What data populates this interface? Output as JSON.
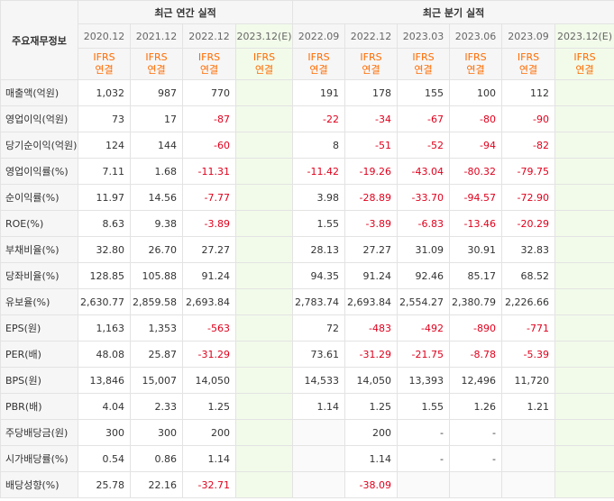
{
  "header": {
    "corner_label": "주요재무정보",
    "annual_title": "최근 연간 실적",
    "quarterly_title": "최근 분기 실적",
    "annual_periods": [
      "2020.12",
      "2021.12",
      "2022.12",
      "2023.12(E)"
    ],
    "quarterly_periods": [
      "2022.09",
      "2022.12",
      "2023.03",
      "2023.06",
      "2023.09",
      "2023.12(E)"
    ],
    "ifrs_line1": "IFRS",
    "ifrs_line2": "연결"
  },
  "rows": [
    {
      "label": "매출액(억원)",
      "annual": [
        "1,032",
        "987",
        "770",
        ""
      ],
      "quarterly": [
        "191",
        "178",
        "155",
        "100",
        "112",
        ""
      ]
    },
    {
      "label": "영업이익(억원)",
      "annual": [
        "73",
        "17",
        "-87",
        ""
      ],
      "quarterly": [
        "-22",
        "-34",
        "-67",
        "-80",
        "-90",
        ""
      ]
    },
    {
      "label": "당기순이익(억원)",
      "annual": [
        "124",
        "144",
        "-60",
        ""
      ],
      "quarterly": [
        "8",
        "-51",
        "-52",
        "-94",
        "-82",
        ""
      ]
    },
    {
      "label": "영업이익률(%)",
      "annual": [
        "7.11",
        "1.68",
        "-11.31",
        ""
      ],
      "quarterly": [
        "-11.42",
        "-19.26",
        "-43.04",
        "-80.32",
        "-79.75",
        ""
      ]
    },
    {
      "label": "순이익률(%)",
      "annual": [
        "11.97",
        "14.56",
        "-7.77",
        ""
      ],
      "quarterly": [
        "3.98",
        "-28.89",
        "-33.70",
        "-94.57",
        "-72.90",
        ""
      ]
    },
    {
      "label": "ROE(%)",
      "annual": [
        "8.63",
        "9.38",
        "-3.89",
        ""
      ],
      "quarterly": [
        "1.55",
        "-3.89",
        "-6.83",
        "-13.46",
        "-20.29",
        ""
      ]
    },
    {
      "label": "부채비율(%)",
      "annual": [
        "32.80",
        "26.70",
        "27.27",
        ""
      ],
      "quarterly": [
        "28.13",
        "27.27",
        "31.09",
        "30.91",
        "32.83",
        ""
      ]
    },
    {
      "label": "당좌비율(%)",
      "annual": [
        "128.85",
        "105.88",
        "91.24",
        ""
      ],
      "quarterly": [
        "94.35",
        "91.24",
        "92.46",
        "85.17",
        "68.52",
        ""
      ]
    },
    {
      "label": "유보율(%)",
      "annual": [
        "2,630.77",
        "2,859.58",
        "2,693.84",
        ""
      ],
      "quarterly": [
        "2,783.74",
        "2,693.84",
        "2,554.27",
        "2,380.79",
        "2,226.66",
        ""
      ]
    },
    {
      "label": "EPS(원)",
      "annual": [
        "1,163",
        "1,353",
        "-563",
        ""
      ],
      "quarterly": [
        "72",
        "-483",
        "-492",
        "-890",
        "-771",
        ""
      ]
    },
    {
      "label": "PER(배)",
      "annual": [
        "48.08",
        "25.87",
        "-31.29",
        ""
      ],
      "quarterly": [
        "73.61",
        "-31.29",
        "-21.75",
        "-8.78",
        "-5.39",
        ""
      ]
    },
    {
      "label": "BPS(원)",
      "annual": [
        "13,846",
        "15,007",
        "14,050",
        ""
      ],
      "quarterly": [
        "14,533",
        "14,050",
        "13,393",
        "12,496",
        "11,720",
        ""
      ]
    },
    {
      "label": "PBR(배)",
      "annual": [
        "4.04",
        "2.33",
        "1.25",
        ""
      ],
      "quarterly": [
        "1.14",
        "1.25",
        "1.55",
        "1.26",
        "1.21",
        ""
      ]
    },
    {
      "label": "주당배당금(원)",
      "annual": [
        "300",
        "300",
        "200",
        ""
      ],
      "quarterly": [
        "",
        "200",
        "-",
        "-",
        "",
        ""
      ]
    },
    {
      "label": "시가배당률(%)",
      "annual": [
        "0.54",
        "0.86",
        "1.14",
        ""
      ],
      "quarterly": [
        "",
        "1.14",
        "-",
        "-",
        "",
        ""
      ]
    },
    {
      "label": "배당성향(%)",
      "annual": [
        "25.78",
        "22.16",
        "-32.71",
        ""
      ],
      "quarterly": [
        "",
        "-38.09",
        "",
        "",
        "",
        ""
      ]
    }
  ],
  "colors": {
    "negative": "#e0001c",
    "ifrs": "#ff6b00",
    "estimate_bg": "#f2fbea"
  }
}
